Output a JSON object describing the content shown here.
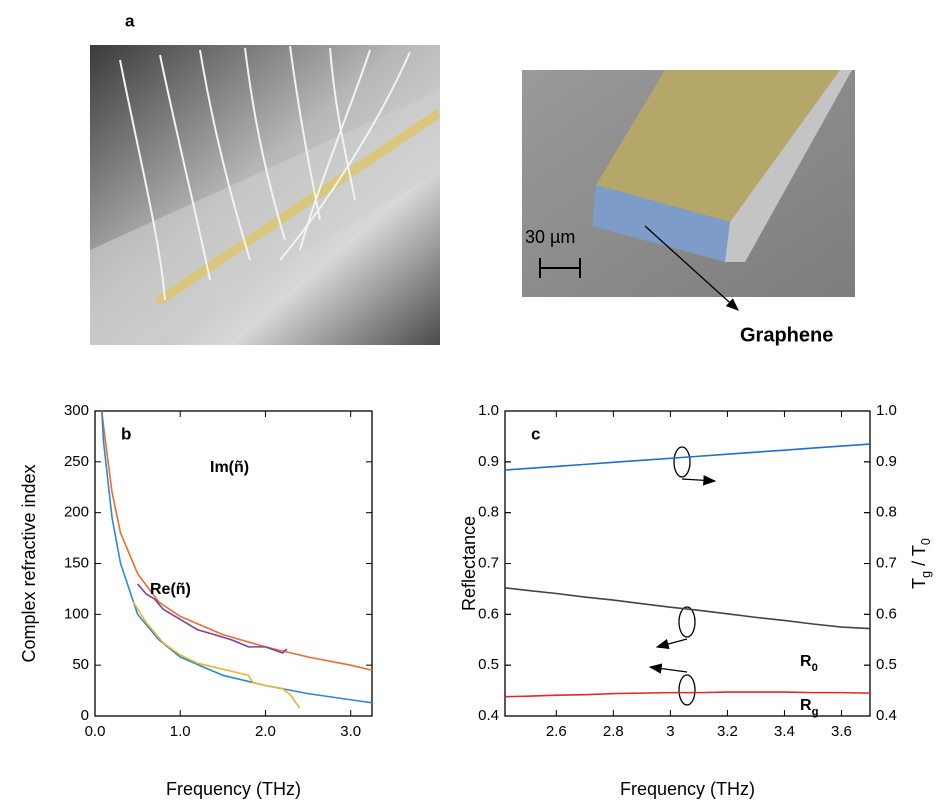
{
  "panel_a": {
    "label": "a",
    "scale_bar": "30 µm",
    "annotation": "Graphene"
  },
  "chart_data": [
    {
      "type": "line",
      "panel": "b",
      "xlabel": "Frequency (THz)",
      "ylabel": "Complex refractive index",
      "xlim": [
        0,
        3.25
      ],
      "ylim": [
        0,
        300
      ],
      "xticks": [
        {
          "value": 0,
          "label": "0.0"
        },
        {
          "value": 1,
          "label": "1.0"
        },
        {
          "value": 2,
          "label": "2.0"
        },
        {
          "value": 3,
          "label": "3.0"
        }
      ],
      "yticks": [
        0,
        50,
        100,
        150,
        200,
        250,
        300
      ],
      "series": [
        {
          "name": "Im(ñ)",
          "color": "#f26b2a",
          "x": [
            0.08,
            0.1,
            0.2,
            0.3,
            0.5,
            0.75,
            1.0,
            1.5,
            2.0,
            2.5,
            3.0,
            3.25
          ],
          "values": [
            300,
            285,
            220,
            180,
            140,
            112,
            98,
            80,
            68,
            58,
            50,
            45
          ]
        },
        {
          "color": "#7b3fa0",
          "x": [
            0.5,
            0.6,
            0.7,
            0.8,
            1.0,
            1.2,
            1.4,
            1.6,
            1.8,
            2.0,
            2.2,
            2.25
          ],
          "values": [
            130,
            120,
            115,
            105,
            95,
            85,
            80,
            75,
            68,
            68,
            62,
            66
          ]
        },
        {
          "name": "Re(ñ)",
          "color": "#2a8ad4",
          "x": [
            0.08,
            0.1,
            0.2,
            0.3,
            0.5,
            0.75,
            1.0,
            1.5,
            2.0,
            2.5,
            3.0,
            3.25
          ],
          "values": [
            300,
            270,
            195,
            150,
            100,
            75,
            58,
            40,
            30,
            22,
            16,
            13
          ]
        },
        {
          "color": "#f0b429",
          "x": [
            0.45,
            0.6,
            0.8,
            1.0,
            1.2,
            1.4,
            1.6,
            1.8,
            1.85,
            2.0,
            2.2,
            2.3,
            2.4
          ],
          "values": [
            112,
            92,
            72,
            60,
            52,
            48,
            44,
            40,
            33,
            30,
            27,
            20,
            8
          ]
        }
      ]
    },
    {
      "type": "line",
      "panel": "c",
      "xlabel": "Frequency (THz)",
      "ylabel": "Reflectance",
      "y2label": "Tg / T0",
      "xlim": [
        2.42,
        3.7
      ],
      "ylim": [
        0.4,
        1
      ],
      "y2lim": [
        0.4,
        1
      ],
      "xticks": [
        2.6,
        2.8,
        3,
        3.2,
        3.4,
        3.6
      ],
      "yticks": [
        0.4,
        0.5,
        0.6,
        0.7,
        0.8,
        0.9,
        {
          "value": 1,
          "label": "1.0"
        }
      ],
      "y2ticks": [
        0.4,
        0.5,
        0.6,
        0.7,
        0.8,
        0.9,
        {
          "value": 1,
          "label": "1.0"
        }
      ],
      "x": [
        2.42,
        2.5,
        2.6,
        2.7,
        2.8,
        2.9,
        3.0,
        3.1,
        3.2,
        3.3,
        3.4,
        3.5,
        3.6,
        3.7
      ],
      "series": [
        {
          "color": "#1f6fd0",
          "axis": "y2",
          "values": [
            0.884,
            0.887,
            0.891,
            0.895,
            0.899,
            0.903,
            0.907,
            0.911,
            0.915,
            0.919,
            0.923,
            0.927,
            0.931,
            0.935
          ]
        },
        {
          "name": "R0",
          "color": "#444444",
          "values": [
            0.652,
            0.647,
            0.641,
            0.634,
            0.628,
            0.621,
            0.614,
            0.608,
            0.601,
            0.594,
            0.588,
            0.581,
            0.575,
            0.572
          ]
        },
        {
          "name": "Rg",
          "color": "#e8252b",
          "values": [
            0.438,
            0.439,
            0.441,
            0.442,
            0.444,
            0.445,
            0.446,
            0.446,
            0.447,
            0.447,
            0.447,
            0.446,
            0.446,
            0.445
          ]
        }
      ]
    }
  ]
}
